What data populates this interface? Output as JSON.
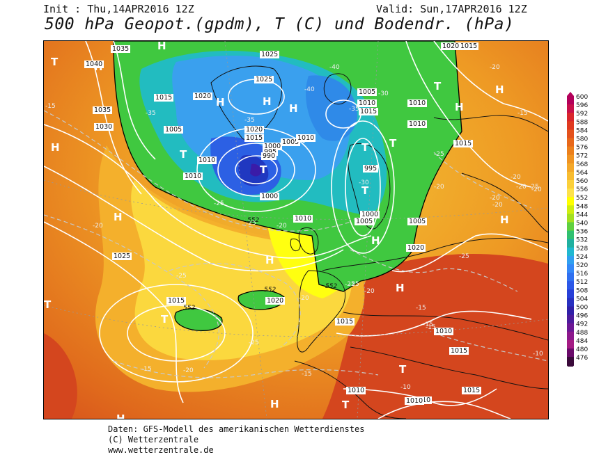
{
  "header": {
    "init_text": "Init : Thu,14APR2016 12Z",
    "valid_text": "Valid: Sun,17APR2016 12Z",
    "title": "500 hPa Geopot.(gpdm), T (C) und Bodendr. (hPa)"
  },
  "legend": {
    "levels": [
      "600",
      "596",
      "592",
      "588",
      "584",
      "580",
      "576",
      "572",
      "568",
      "564",
      "560",
      "556",
      "552",
      "548",
      "544",
      "540",
      "536",
      "532",
      "528",
      "524",
      "520",
      "516",
      "512",
      "508",
      "504",
      "500",
      "496",
      "492",
      "488",
      "484",
      "480",
      "476"
    ],
    "colors": [
      "#b3005a",
      "#c8104a",
      "#d9262c",
      "#e03a20",
      "#e4521c",
      "#e8681a",
      "#ec801c",
      "#f09422",
      "#f4a82a",
      "#f8bc30",
      "#fbd03a",
      "#fde24a",
      "#ffff00",
      "#d0ee10",
      "#a4e020",
      "#60d040",
      "#30c070",
      "#20b0a0",
      "#20b8d0",
      "#30a0f0",
      "#3488f8",
      "#3070f0",
      "#2c58e8",
      "#2840d8",
      "#2830c0",
      "#3020a8",
      "#4c1c9c",
      "#6c1894",
      "#8c188c",
      "#a41c84",
      "#6a0a6a",
      "#3a0a3a"
    ]
  },
  "map_labels": {
    "pressure_centers": [
      {
        "letter": "H"
      },
      {
        "letter": "H"
      },
      {
        "letter": "H"
      },
      {
        "letter": "H"
      },
      {
        "letter": "H"
      },
      {
        "letter": "H"
      },
      {
        "letter": "H"
      },
      {
        "letter": "H"
      },
      {
        "letter": "H"
      },
      {
        "letter": "H"
      },
      {
        "letter": "H"
      },
      {
        "letter": "H"
      },
      {
        "letter": "H"
      },
      {
        "letter": "H"
      },
      {
        "letter": "H"
      },
      {
        "letter": "T"
      },
      {
        "letter": "T"
      },
      {
        "letter": "T"
      },
      {
        "letter": "T"
      },
      {
        "letter": "T"
      },
      {
        "letter": "T"
      },
      {
        "letter": "T"
      },
      {
        "letter": "T"
      },
      {
        "letter": "T"
      },
      {
        "letter": "T"
      },
      {
        "letter": "T"
      },
      {
        "letter": "T"
      },
      {
        "letter": "T"
      }
    ],
    "isobar_labels": [
      "1035",
      "1040",
      "1035",
      "1030",
      "1025",
      "1025",
      "1015",
      "1020",
      "1005",
      "1010",
      "1010",
      "1020",
      "1015",
      "1000",
      "995",
      "990",
      "1005",
      "1010",
      "1000",
      "1005",
      "1010",
      "1015",
      "1010",
      "1010",
      "995",
      "1000",
      "1005",
      "1005",
      "1010",
      "1020",
      "1015",
      "1025",
      "1020",
      "1015",
      "1015",
      "1010",
      "1010",
      "1015",
      "1020",
      "1015",
      "1010",
      "1015",
      "1010"
    ],
    "temperature_labels": [
      "-15",
      "-35",
      "-35",
      "-40",
      "-40",
      "-35",
      "-30",
      "-30",
      "-25",
      "-25",
      "-20",
      "-25",
      "-20",
      "-20",
      "-20",
      "-20",
      "-20",
      "-20",
      "-25",
      "-20",
      "-25",
      "-20",
      "-15",
      "-15",
      "-25",
      "-20",
      "-15",
      "-15",
      "-15",
      "-10",
      "-10",
      "-15",
      "-20",
      "-25",
      "-25",
      "-20",
      "-25"
    ],
    "geopotential_labels": [
      "552",
      "552",
      "552",
      "552"
    ]
  },
  "footer": {
    "line1": "Daten: GFS-Modell des amerikanischen Wetterdienstes",
    "line2": "(C) Wetterzentrale",
    "line3": "www.wetterzentrale.de"
  }
}
